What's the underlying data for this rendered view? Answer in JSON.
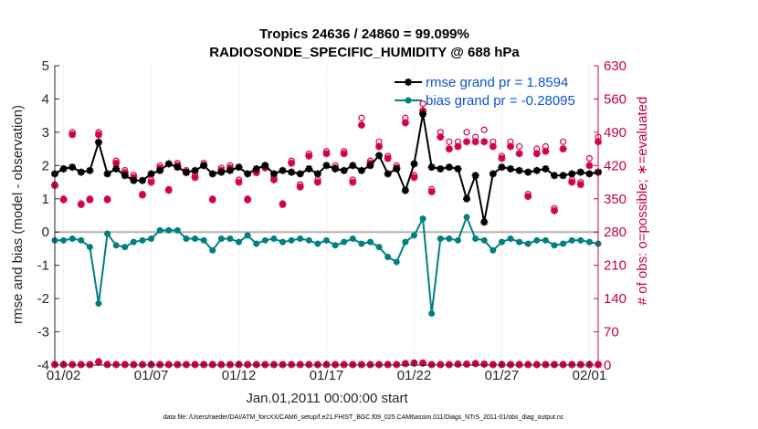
{
  "chart_data": {
    "type": "line",
    "title_line1": "Tropics 24636 / 24860 = 99.099%",
    "title_line2": "RADIOSONDE_SPECIFIC_HUMIDITY @ 688 hPa",
    "xlabel": "Jan.01,2011 00:00:00 start",
    "ylabel_left": "rmse and bias (model - observation)",
    "ylabel_right": "# of obs: o=possible; ∗=evaluated",
    "footer": "data file: /Users/raeder/DAI/ATM_forcXX/CAM6_setup/f.e21.FHIST_BGC.f09_025.CAM6assim.011/Diags_NTrS_2011-01/obs_diag_output.nc",
    "x_range_days": [
      0.5,
      31.5
    ],
    "ylim_left": [
      -4,
      5
    ],
    "ylim_right": [
      0,
      630
    ],
    "x_ticks": [
      {
        "day": 1,
        "label": "01/02"
      },
      {
        "day": 6,
        "label": "01/07"
      },
      {
        "day": 11,
        "label": "01/12"
      },
      {
        "day": 16,
        "label": "01/17"
      },
      {
        "day": 21,
        "label": "01/22"
      },
      {
        "day": 26,
        "label": "01/27"
      },
      {
        "day": 31,
        "label": "02/01"
      }
    ],
    "y_ticks_left": [
      -4,
      -3,
      -2,
      -1,
      0,
      1,
      2,
      3,
      4,
      5
    ],
    "y_ticks_right": [
      0,
      70,
      140,
      210,
      280,
      350,
      420,
      490,
      560,
      630
    ],
    "colors": {
      "rmse": "#000000",
      "bias": "#00807f",
      "obs": "#d2004e",
      "legend_text": "#0b55d6",
      "zero_line": "#b4b4b4"
    },
    "series": [
      {
        "name": "rmse grand pr = 1.8594",
        "key": "rmse",
        "x": [
          0.5,
          1,
          1.5,
          2,
          2.5,
          3,
          3.5,
          4,
          4.5,
          5,
          5.5,
          6,
          6.5,
          7,
          7.5,
          8,
          8.5,
          9,
          9.5,
          10,
          10.5,
          11,
          11.5,
          12,
          12.5,
          13,
          13.5,
          14,
          14.5,
          15,
          15.5,
          16,
          16.5,
          17,
          17.5,
          18,
          18.5,
          19,
          19.5,
          20,
          20.5,
          21,
          21.5,
          22,
          22.5,
          23,
          23.5,
          24,
          24.5,
          25,
          25.5,
          26,
          26.5,
          27,
          27.5,
          28,
          28.5,
          29,
          29.5,
          30,
          30.5,
          31,
          31.5
        ],
        "values": [
          1.75,
          1.9,
          1.95,
          1.8,
          1.85,
          2.7,
          1.75,
          1.9,
          1.7,
          1.55,
          1.55,
          1.75,
          1.85,
          2.05,
          1.95,
          1.8,
          1.85,
          2.0,
          1.75,
          1.8,
          1.85,
          1.95,
          1.75,
          1.9,
          2.0,
          1.75,
          1.85,
          1.8,
          1.75,
          1.9,
          1.75,
          2.0,
          1.9,
          1.85,
          2.0,
          1.85,
          2.0,
          2.3,
          1.75,
          1.9,
          1.25,
          2.05,
          3.55,
          1.95,
          1.9,
          1.95,
          1.9,
          1.0,
          1.7,
          0.3,
          1.75,
          1.95,
          1.9,
          1.85,
          1.8,
          1.85,
          1.9,
          1.7,
          1.7,
          1.75,
          1.8,
          1.75,
          1.8
        ]
      },
      {
        "name": "bias grand pr = -0.28095",
        "key": "bias",
        "x": [
          0.5,
          1,
          1.5,
          2,
          2.5,
          3,
          3.5,
          4,
          4.5,
          5,
          5.5,
          6,
          6.5,
          7,
          7.5,
          8,
          8.5,
          9,
          9.5,
          10,
          10.5,
          11,
          11.5,
          12,
          12.5,
          13,
          13.5,
          14,
          14.5,
          15,
          15.5,
          16,
          16.5,
          17,
          17.5,
          18,
          18.5,
          19,
          19.5,
          20,
          20.5,
          21,
          21.5,
          22,
          22.5,
          23,
          23.5,
          24,
          24.5,
          25,
          25.5,
          26,
          26.5,
          27,
          27.5,
          28,
          28.5,
          29,
          29.5,
          30,
          30.5,
          31,
          31.5
        ],
        "values": [
          -0.25,
          -0.25,
          -0.2,
          -0.25,
          -0.45,
          -2.15,
          -0.05,
          -0.4,
          -0.45,
          -0.3,
          -0.25,
          -0.2,
          0.05,
          0.05,
          0.05,
          -0.2,
          -0.2,
          -0.25,
          -0.55,
          -0.2,
          -0.2,
          -0.3,
          -0.1,
          -0.35,
          -0.25,
          -0.2,
          -0.3,
          -0.25,
          -0.2,
          -0.25,
          -0.35,
          -0.25,
          -0.4,
          -0.3,
          -0.2,
          -0.35,
          -0.3,
          -0.45,
          -0.75,
          -0.9,
          -0.3,
          -0.1,
          0.4,
          -2.45,
          -0.2,
          -0.2,
          -0.25,
          0.45,
          -0.2,
          -0.25,
          -0.55,
          -0.3,
          -0.2,
          -0.3,
          -0.35,
          -0.25,
          -0.25,
          -0.4,
          -0.35,
          -0.25,
          -0.25,
          -0.3,
          -0.35
        ]
      },
      {
        "name": "possible obs",
        "key": "possible",
        "x": [
          0.5,
          1,
          1.5,
          2,
          2.5,
          3,
          3.5,
          4,
          4.5,
          5,
          5.5,
          6,
          6.5,
          7,
          7.5,
          8,
          8.5,
          9,
          9.5,
          10,
          10.5,
          11,
          11.5,
          12,
          12.5,
          13,
          13.5,
          14,
          14.5,
          15,
          15.5,
          16,
          16.5,
          17,
          17.5,
          18,
          18.5,
          19,
          19.5,
          20,
          20.5,
          21,
          21.5,
          22,
          22.5,
          23,
          23.5,
          24,
          24.5,
          25,
          25.5,
          26,
          26.5,
          27,
          27.5,
          28,
          28.5,
          29,
          29.5,
          30,
          30.5,
          31,
          31.5
        ],
        "values": [
          380,
          350,
          490,
          340,
          350,
          490,
          350,
          430,
          410,
          400,
          360,
          390,
          420,
          370,
          425,
          410,
          400,
          425,
          350,
          415,
          420,
          390,
          350,
          410,
          420,
          395,
          340,
          430,
          380,
          445,
          390,
          450,
          420,
          450,
          390,
          520,
          430,
          470,
          440,
          420,
          520,
          400,
          550,
          370,
          490,
          470,
          470,
          490,
          480,
          495,
          470,
          440,
          470,
          460,
          360,
          455,
          460,
          330,
          470,
          390,
          385,
          435,
          480
        ]
      },
      {
        "name": "evaluated obs",
        "key": "evaluated",
        "x": [
          0.5,
          1,
          1.5,
          2,
          2.5,
          3,
          3.5,
          4,
          4.5,
          5,
          5.5,
          6,
          6.5,
          7,
          7.5,
          8,
          8.5,
          9,
          9.5,
          10,
          10.5,
          11,
          11.5,
          12,
          12.5,
          13,
          13.5,
          14,
          14.5,
          15,
          15.5,
          16,
          16.5,
          17,
          17.5,
          18,
          18.5,
          19,
          19.5,
          20,
          20.5,
          21,
          21.5,
          22,
          22.5,
          23,
          23.5,
          24,
          24.5,
          25,
          25.5,
          26,
          26.5,
          27,
          27.5,
          28,
          28.5,
          29,
          29.5,
          30,
          30.5,
          31,
          31.5
        ],
        "values": [
          378,
          348,
          485,
          338,
          348,
          485,
          348,
          425,
          405,
          395,
          358,
          385,
          415,
          368,
          420,
          405,
          395,
          420,
          348,
          410,
          415,
          385,
          348,
          405,
          415,
          390,
          338,
          425,
          375,
          440,
          385,
          445,
          415,
          445,
          385,
          505,
          425,
          460,
          435,
          415,
          510,
          395,
          535,
          365,
          480,
          455,
          460,
          470,
          470,
          470,
          460,
          435,
          460,
          445,
          355,
          445,
          450,
          325,
          455,
          385,
          380,
          420,
          470
        ]
      },
      {
        "name": "possible obs (lower)",
        "key": "possible_low",
        "x": [
          0.5,
          1,
          1.5,
          2,
          2.5,
          3,
          3.5,
          4,
          4.5,
          5,
          5.5,
          6,
          6.5,
          7,
          7.5,
          8,
          8.5,
          9,
          9.5,
          10,
          10.5,
          11,
          11.5,
          12,
          12.5,
          13,
          13.5,
          14,
          14.5,
          15,
          15.5,
          16,
          16.5,
          17,
          17.5,
          18,
          18.5,
          19,
          19.5,
          20,
          20.5,
          21,
          21.5,
          22,
          22.5,
          23,
          23.5,
          24,
          24.5,
          25,
          25.5,
          26,
          26.5,
          27,
          27.5,
          28,
          28.5,
          29,
          29.5,
          30,
          30.5,
          31,
          31.5
        ],
        "values": [
          2,
          2,
          2,
          2,
          2,
          8,
          2,
          2,
          2,
          2,
          2,
          2,
          2,
          2,
          2,
          2,
          2,
          2,
          2,
          2,
          2,
          2,
          2,
          2,
          2,
          2,
          2,
          2,
          2,
          2,
          2,
          2,
          2,
          2,
          2,
          2,
          2,
          2,
          2,
          2,
          4,
          5,
          5,
          2,
          2,
          2,
          3,
          3,
          4,
          3,
          2,
          2,
          2,
          2,
          2,
          2,
          2,
          2,
          2,
          2,
          2,
          2,
          2
        ]
      },
      {
        "name": "evaluated obs (lower)",
        "key": "evaluated_low",
        "x": [
          0.5,
          1,
          1.5,
          2,
          2.5,
          3,
          3.5,
          4,
          4.5,
          5,
          5.5,
          6,
          6.5,
          7,
          7.5,
          8,
          8.5,
          9,
          9.5,
          10,
          10.5,
          11,
          11.5,
          12,
          12.5,
          13,
          13.5,
          14,
          14.5,
          15,
          15.5,
          16,
          16.5,
          17,
          17.5,
          18,
          18.5,
          19,
          19.5,
          20,
          20.5,
          21,
          21.5,
          22,
          22.5,
          23,
          23.5,
          24,
          24.5,
          25,
          25.5,
          26,
          26.5,
          27,
          27.5,
          28,
          28.5,
          29,
          29.5,
          30,
          30.5,
          31,
          31.5
        ],
        "values": [
          1,
          1,
          1,
          1,
          1,
          6,
          1,
          1,
          1,
          1,
          1,
          1,
          1,
          1,
          1,
          1,
          1,
          1,
          1,
          1,
          1,
          1,
          1,
          1,
          1,
          1,
          1,
          1,
          1,
          1,
          1,
          1,
          1,
          1,
          1,
          1,
          1,
          1,
          1,
          1,
          3,
          4,
          4,
          1,
          1,
          1,
          2,
          2,
          3,
          2,
          1,
          1,
          1,
          1,
          1,
          1,
          1,
          1,
          1,
          1,
          1,
          1,
          1
        ]
      }
    ]
  }
}
